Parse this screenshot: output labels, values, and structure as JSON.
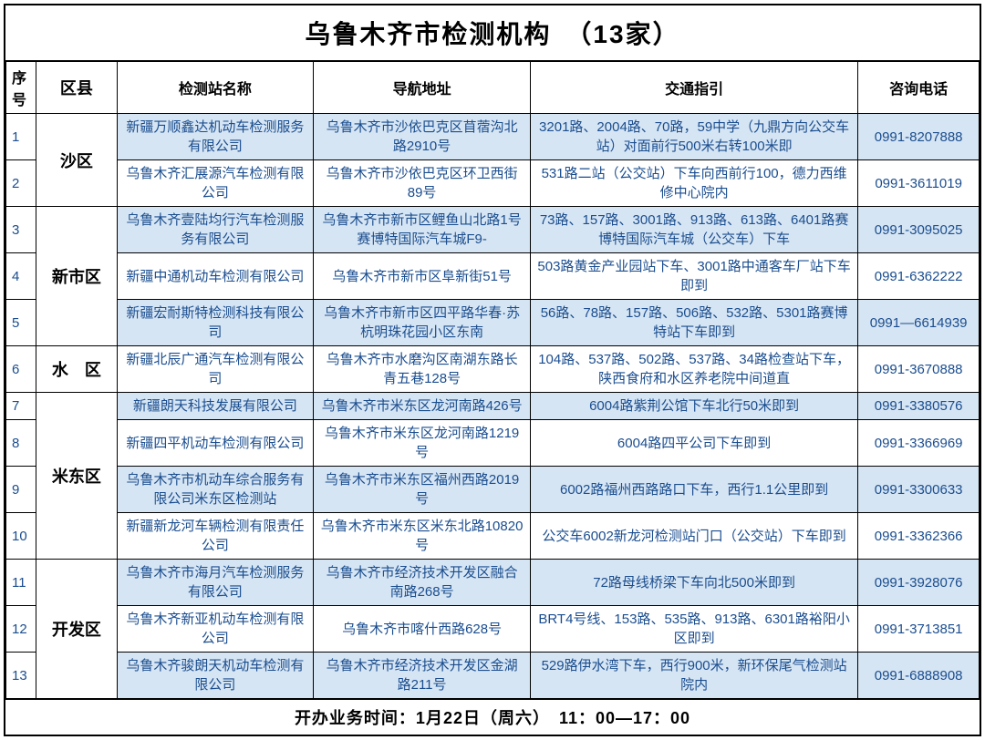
{
  "title": "乌鲁木齐市检测机构　（13家）",
  "columns": [
    "序号",
    "区县",
    "检测站名称",
    "导航地址",
    "交通指引",
    "咨询电话"
  ],
  "districts": [
    {
      "name": "沙区",
      "rows": [
        {
          "seq": "1",
          "name": "新疆万顺鑫达机动车检测服务有限公司",
          "address": "乌鲁木齐市沙依巴克区苜蓿沟北路2910号",
          "guide": "3201路、2004路、70路，59中学（九鼎方向公交车站）对面前行500米右转100米即",
          "phone": "0991-8207888",
          "bg": "row-even"
        },
        {
          "seq": "2",
          "name": "乌鲁木齐汇展源汽车检测有限公司",
          "address": "乌鲁木齐市沙依巴克区环卫西街89号",
          "guide": "531路二站（公交站）下车向西前行100，德力西维修中心院内",
          "phone": "0991-3611019",
          "bg": "row-odd"
        }
      ]
    },
    {
      "name": "新市区",
      "rows": [
        {
          "seq": "3",
          "name": "乌鲁木齐壹陆均行汽车检测服务有限公司",
          "address": "乌鲁木齐市新市区鲤鱼山北路1号赛博特国际汽车城F9-",
          "guide": "73路、157路、3001路、913路、613路、6401路赛博特国际汽车城（公交车）下车",
          "phone": "0991-3095025",
          "bg": "row-even"
        },
        {
          "seq": "4",
          "name": "新疆中通机动车检测有限公司",
          "address": "乌鲁木齐市新市区阜新街51号",
          "guide": "503路黄金产业园站下车、3001路中通客车厂站下车即到",
          "phone": "0991-6362222",
          "bg": "row-odd"
        },
        {
          "seq": "5",
          "name": "新疆宏耐斯特检测科技有限公司",
          "address": "乌鲁木齐市新市区四平路华春·苏杭明珠花园小区东南",
          "guide": "56路、78路、157路、506路、532路、5301路赛博特站下车即到",
          "phone": "0991—6614939",
          "bg": "row-even"
        }
      ]
    },
    {
      "name": "水　区",
      "rows": [
        {
          "seq": "6",
          "name": "新疆北辰广通汽车检测有限公司",
          "address": "乌鲁木齐市水磨沟区南湖东路长青五巷128号",
          "guide": "104路、537路、502路、537路、34路检查站下车，陕西食府和水区养老院中间道直",
          "phone": "0991-3670888",
          "bg": "row-odd"
        }
      ]
    },
    {
      "name": "米东区",
      "rows": [
        {
          "seq": "7",
          "name": "新疆朗天科技发展有限公司",
          "address": "乌鲁木齐市米东区龙河南路426号",
          "guide": "6004路紫荆公馆下车北行50米即到",
          "phone": "0991-3380576",
          "bg": "row-even"
        },
        {
          "seq": "8",
          "name": "新疆四平机动车检测有限公司",
          "address": "乌鲁木齐市米东区龙河南路1219号",
          "guide": "6004路四平公司下车即到",
          "phone": "0991-3366969",
          "bg": "row-odd"
        },
        {
          "seq": "9",
          "name": "乌鲁木齐市机动车综合服务有限公司米东区检测站",
          "address": "乌鲁木齐市米东区福州西路2019号",
          "guide": "6002路福州西路路口下车，西行1.1公里即到",
          "phone": "0991-3300633",
          "bg": "row-even"
        },
        {
          "seq": "10",
          "name": "新疆新龙河车辆检测有限责任公司",
          "address": "乌鲁木齐市米东区米东北路10820号",
          "guide": "公交车6002新龙河检测站门口（公交站）下车即到",
          "phone": "0991-3362366",
          "bg": "row-odd"
        }
      ]
    },
    {
      "name": "开发区",
      "rows": [
        {
          "seq": "11",
          "name": "乌鲁木齐市海月汽车检测服务有限公司",
          "address": "乌鲁木齐市经济技术开发区融合南路268号",
          "guide": "72路母线桥梁下车向北500米即到",
          "phone": "0991-3928076",
          "bg": "row-even"
        },
        {
          "seq": "12",
          "name": "乌鲁木齐新亚机动车检测有限公司",
          "address": "乌鲁木齐市喀什西路628号",
          "guide": "BRT4号线、153路、535路、913路、6301路裕阳小区即到",
          "phone": "0991-3713851",
          "bg": "row-odd"
        },
        {
          "seq": "13",
          "name": "乌鲁木齐骏朗天机动车检测有限公司",
          "address": "乌鲁木齐市经济技术开发区金湖路211号",
          "guide": "529路伊水湾下车，西行900米，新环保尾气检测站院内",
          "phone": "0991-6888908",
          "bg": "row-even"
        }
      ]
    }
  ],
  "footer": "开办业务时间：1月22日（周六）　11：00—17：00",
  "colors": {
    "border": "#000000",
    "text_data": "#1a4d8f",
    "text_header": "#000000",
    "bg_even": "#d6e5f3",
    "bg_odd": "#ffffff"
  },
  "column_widths": {
    "seq": 30,
    "district": 80,
    "name": 195,
    "address": 215,
    "guide": 325,
    "phone": 120
  },
  "typography": {
    "title_fontsize": 28,
    "header_fontsize": 16,
    "cell_fontsize": 15,
    "district_fontsize": 18,
    "footer_fontsize": 18
  }
}
